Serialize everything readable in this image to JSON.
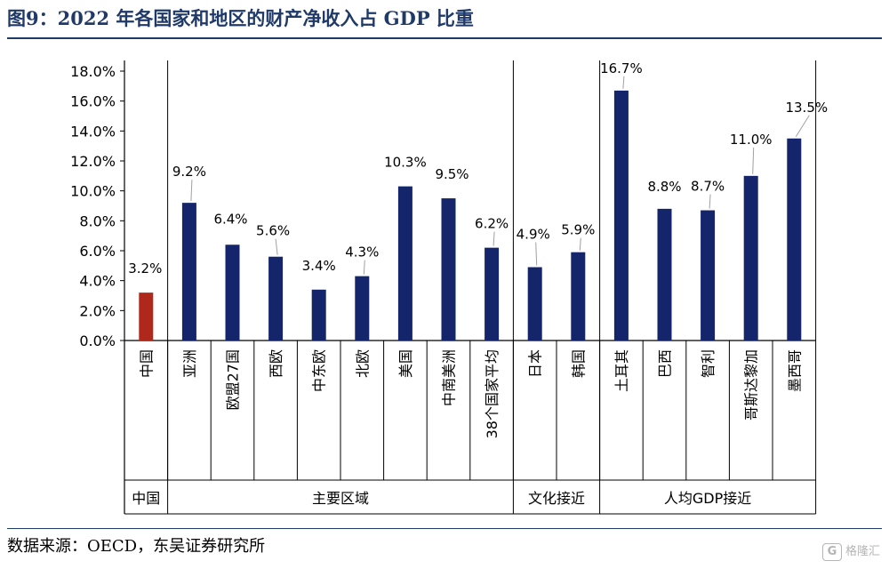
{
  "figure": {
    "title": "图9：2022 年各国家和地区的财产净收入占 GDP 比重",
    "source": "数据来源：OECD，东吴证券研究所",
    "watermark": "格隆汇"
  },
  "chart_data": {
    "type": "bar",
    "categories": [
      "中国",
      "亚洲",
      "欧盟27国",
      "西欧",
      "中东欧",
      "北欧",
      "美国",
      "中南美洲",
      "38个国家平均",
      "日本",
      "韩国",
      "土耳其",
      "巴西",
      "智利",
      "哥斯达黎加",
      "墨西哥"
    ],
    "values": [
      3.2,
      9.2,
      6.4,
      5.6,
      3.4,
      4.3,
      10.3,
      9.5,
      6.2,
      4.9,
      5.9,
      16.7,
      8.8,
      8.7,
      11.0,
      13.5
    ],
    "value_labels": [
      "3.2%",
      "9.2%",
      "6.4%",
      "5.6%",
      "3.4%",
      "4.3%",
      "10.3%",
      "9.5%",
      "6.2%",
      "4.9%",
      "5.9%",
      "16.7%",
      "8.8%",
      "8.7%",
      "11.0%",
      "13.5%"
    ],
    "groups": [
      {
        "label": "中国",
        "start": 0,
        "end": 0
      },
      {
        "label": "主要区域",
        "start": 1,
        "end": 8
      },
      {
        "label": "文化接近",
        "start": 9,
        "end": 10
      },
      {
        "label": "人均GDP接近",
        "start": 11,
        "end": 15
      }
    ],
    "yticks": [
      "0.0%",
      "2.0%",
      "4.0%",
      "6.0%",
      "8.0%",
      "10.0%",
      "12.0%",
      "14.0%",
      "16.0%",
      "18.0%"
    ],
    "ylim": [
      0,
      18
    ],
    "ystep": 2,
    "grid": false,
    "colors": {
      "highlight": "#b0281c",
      "bar": "#14256b",
      "axis": "#000000"
    },
    "highlight_index": 0
  }
}
